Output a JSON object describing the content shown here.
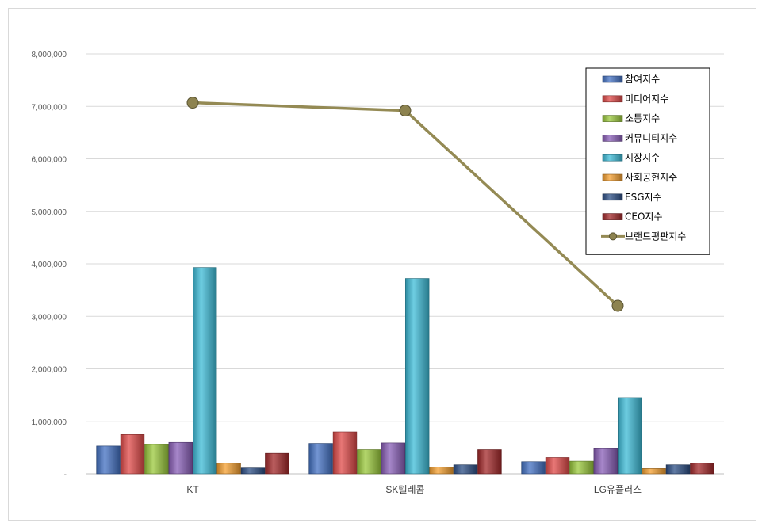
{
  "chart_data": {
    "type": "bar",
    "categories": [
      "KT",
      "SK텔레콤",
      "LG유플러스"
    ],
    "ylim": [
      0,
      8000000
    ],
    "yticks": [
      "-",
      "1,000,000",
      "2,000,000",
      "3,000,000",
      "4,000,000",
      "5,000,000",
      "6,000,000",
      "7,000,000",
      "8,000,000"
    ],
    "grid": true,
    "legend_position": "top-right",
    "series": [
      {
        "name": "참여지수",
        "kind": "bar",
        "color": "#4472c4",
        "values": [
          530000,
          580000,
          230000
        ]
      },
      {
        "name": "미디어지수",
        "kind": "bar",
        "color": "#e04a48",
        "values": [
          750000,
          800000,
          310000
        ]
      },
      {
        "name": "소통지수",
        "kind": "bar",
        "color": "#9bc93c",
        "values": [
          560000,
          460000,
          240000
        ]
      },
      {
        "name": "커뮤니티지수",
        "kind": "bar",
        "color": "#8a5fb8",
        "values": [
          600000,
          590000,
          480000
        ]
      },
      {
        "name": "시장지수",
        "kind": "bar",
        "color": "#3dbcd8",
        "values": [
          3930000,
          3720000,
          1450000
        ]
      },
      {
        "name": "사회공헌지수",
        "kind": "bar",
        "color": "#f5a030",
        "values": [
          200000,
          130000,
          100000
        ]
      },
      {
        "name": "ESG지수",
        "kind": "bar",
        "color": "#2c4f86",
        "values": [
          110000,
          170000,
          170000
        ]
      },
      {
        "name": "CEO지수",
        "kind": "bar",
        "color": "#a3282a",
        "values": [
          390000,
          460000,
          200000
        ]
      },
      {
        "name": "브랜드평판지수",
        "kind": "line",
        "color": "#948a54",
        "values": [
          7070000,
          6920000,
          3200000
        ]
      }
    ]
  }
}
